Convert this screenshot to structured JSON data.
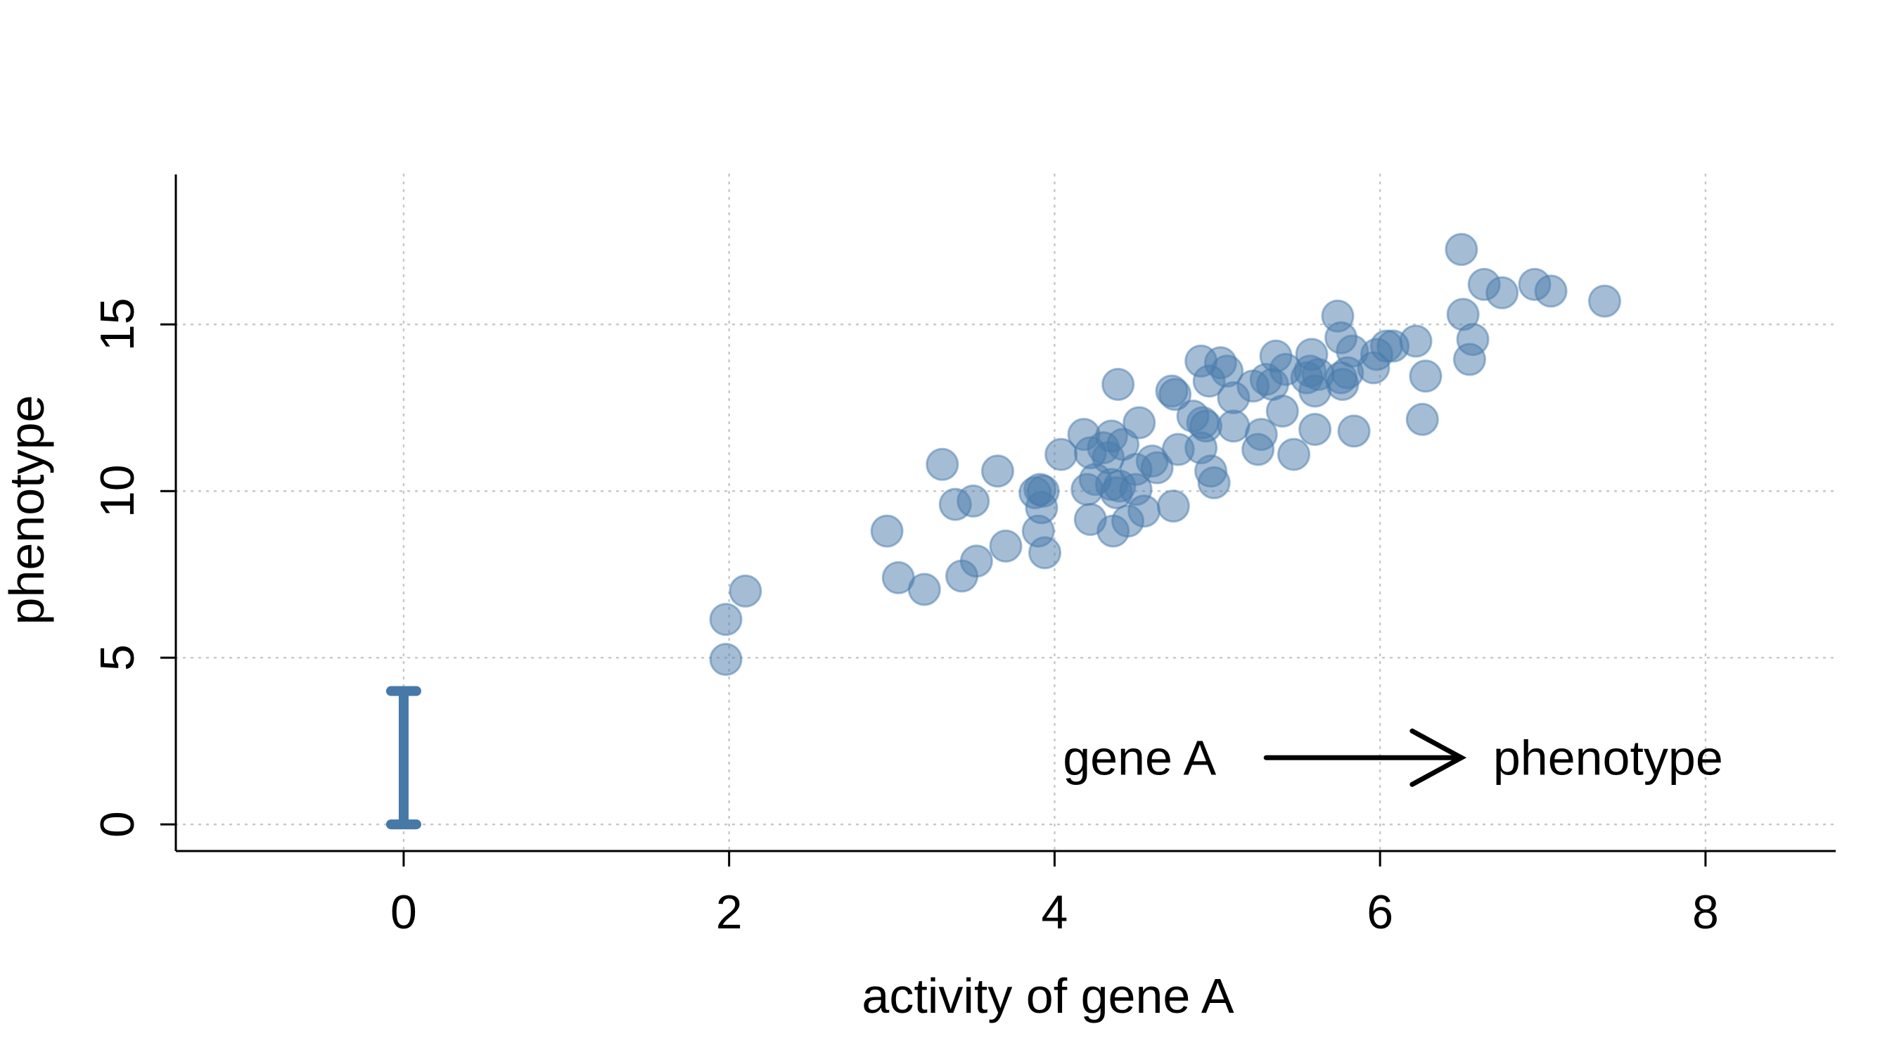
{
  "chart_data": {
    "type": "scatter",
    "title": "",
    "xlabel": "activity of gene A",
    "ylabel": "phenotype",
    "xlim": [
      -1.4,
      8.8
    ],
    "ylim": [
      -0.8,
      19.5
    ],
    "xticks": [
      0,
      2,
      4,
      6,
      8
    ],
    "yticks": [
      0,
      5,
      10,
      15
    ],
    "grid": true,
    "colors": {
      "point_fill": "#4a7bab",
      "point_stroke": "#4a7bab",
      "point_opacity": 0.5,
      "bar": "#4679a8"
    },
    "interval": {
      "x": 0,
      "ymin": 0,
      "ymax": 4
    },
    "annotation": {
      "left": "gene A",
      "right": "phenotype",
      "arrow": "right",
      "arrow_y": 2.0,
      "arrow_x": [
        5.3,
        6.5
      ]
    },
    "points": [
      [
        1.98,
        6.15
      ],
      [
        1.98,
        4.95
      ],
      [
        2.1,
        7.0
      ],
      [
        2.97,
        8.8
      ],
      [
        3.04,
        7.4
      ],
      [
        3.2,
        7.05
      ],
      [
        3.31,
        10.8
      ],
      [
        3.39,
        9.6
      ],
      [
        3.43,
        7.45
      ],
      [
        3.5,
        9.7
      ],
      [
        3.52,
        7.9
      ],
      [
        3.65,
        10.6
      ],
      [
        3.7,
        8.35
      ],
      [
        3.88,
        9.95
      ],
      [
        3.9,
        8.8
      ],
      [
        3.91,
        10.05
      ],
      [
        3.92,
        9.5
      ],
      [
        3.93,
        10.0
      ],
      [
        3.94,
        8.15
      ],
      [
        4.04,
        11.1
      ],
      [
        4.18,
        11.7
      ],
      [
        4.2,
        10.05
      ],
      [
        4.22,
        11.15
      ],
      [
        4.22,
        9.15
      ],
      [
        4.25,
        10.35
      ],
      [
        4.3,
        11.3
      ],
      [
        4.33,
        11.0
      ],
      [
        4.35,
        10.2
      ],
      [
        4.35,
        11.65
      ],
      [
        4.36,
        8.8
      ],
      [
        4.38,
        9.95
      ],
      [
        4.39,
        13.2
      ],
      [
        4.4,
        10.15
      ],
      [
        4.42,
        11.4
      ],
      [
        4.45,
        9.1
      ],
      [
        4.5,
        10.65
      ],
      [
        4.5,
        10.05
      ],
      [
        4.52,
        12.05
      ],
      [
        4.55,
        9.4
      ],
      [
        4.6,
        10.9
      ],
      [
        4.63,
        10.7
      ],
      [
        4.72,
        13.0
      ],
      [
        4.73,
        9.55
      ],
      [
        4.74,
        12.9
      ],
      [
        4.76,
        11.25
      ],
      [
        4.85,
        12.25
      ],
      [
        4.9,
        13.9
      ],
      [
        4.9,
        11.3
      ],
      [
        4.91,
        12.05
      ],
      [
        4.93,
        11.95
      ],
      [
        4.95,
        13.3
      ],
      [
        4.96,
        10.6
      ],
      [
        4.98,
        10.25
      ],
      [
        5.02,
        13.85
      ],
      [
        5.06,
        13.6
      ],
      [
        5.1,
        12.8
      ],
      [
        5.1,
        11.95
      ],
      [
        5.22,
        13.15
      ],
      [
        5.25,
        11.25
      ],
      [
        5.27,
        11.7
      ],
      [
        5.3,
        13.35
      ],
      [
        5.34,
        13.2
      ],
      [
        5.36,
        14.05
      ],
      [
        5.4,
        12.4
      ],
      [
        5.42,
        13.65
      ],
      [
        5.47,
        11.1
      ],
      [
        5.55,
        13.4
      ],
      [
        5.57,
        13.6
      ],
      [
        5.58,
        14.1
      ],
      [
        5.6,
        13.0
      ],
      [
        5.6,
        11.85
      ],
      [
        5.62,
        13.5
      ],
      [
        5.74,
        15.25
      ],
      [
        5.76,
        14.6
      ],
      [
        5.76,
        13.4
      ],
      [
        5.77,
        13.2
      ],
      [
        5.8,
        13.55
      ],
      [
        5.83,
        14.2
      ],
      [
        5.84,
        11.8
      ],
      [
        5.96,
        13.7
      ],
      [
        5.98,
        14.1
      ],
      [
        6.04,
        14.35
      ],
      [
        6.08,
        14.35
      ],
      [
        6.22,
        14.5
      ],
      [
        6.26,
        12.15
      ],
      [
        6.28,
        13.45
      ],
      [
        6.5,
        17.25
      ],
      [
        6.51,
        15.3
      ],
      [
        6.55,
        13.95
      ],
      [
        6.57,
        14.55
      ],
      [
        6.64,
        16.2
      ],
      [
        6.75,
        15.95
      ],
      [
        6.95,
        16.2
      ],
      [
        7.05,
        16.0
      ],
      [
        7.38,
        15.7
      ]
    ]
  }
}
